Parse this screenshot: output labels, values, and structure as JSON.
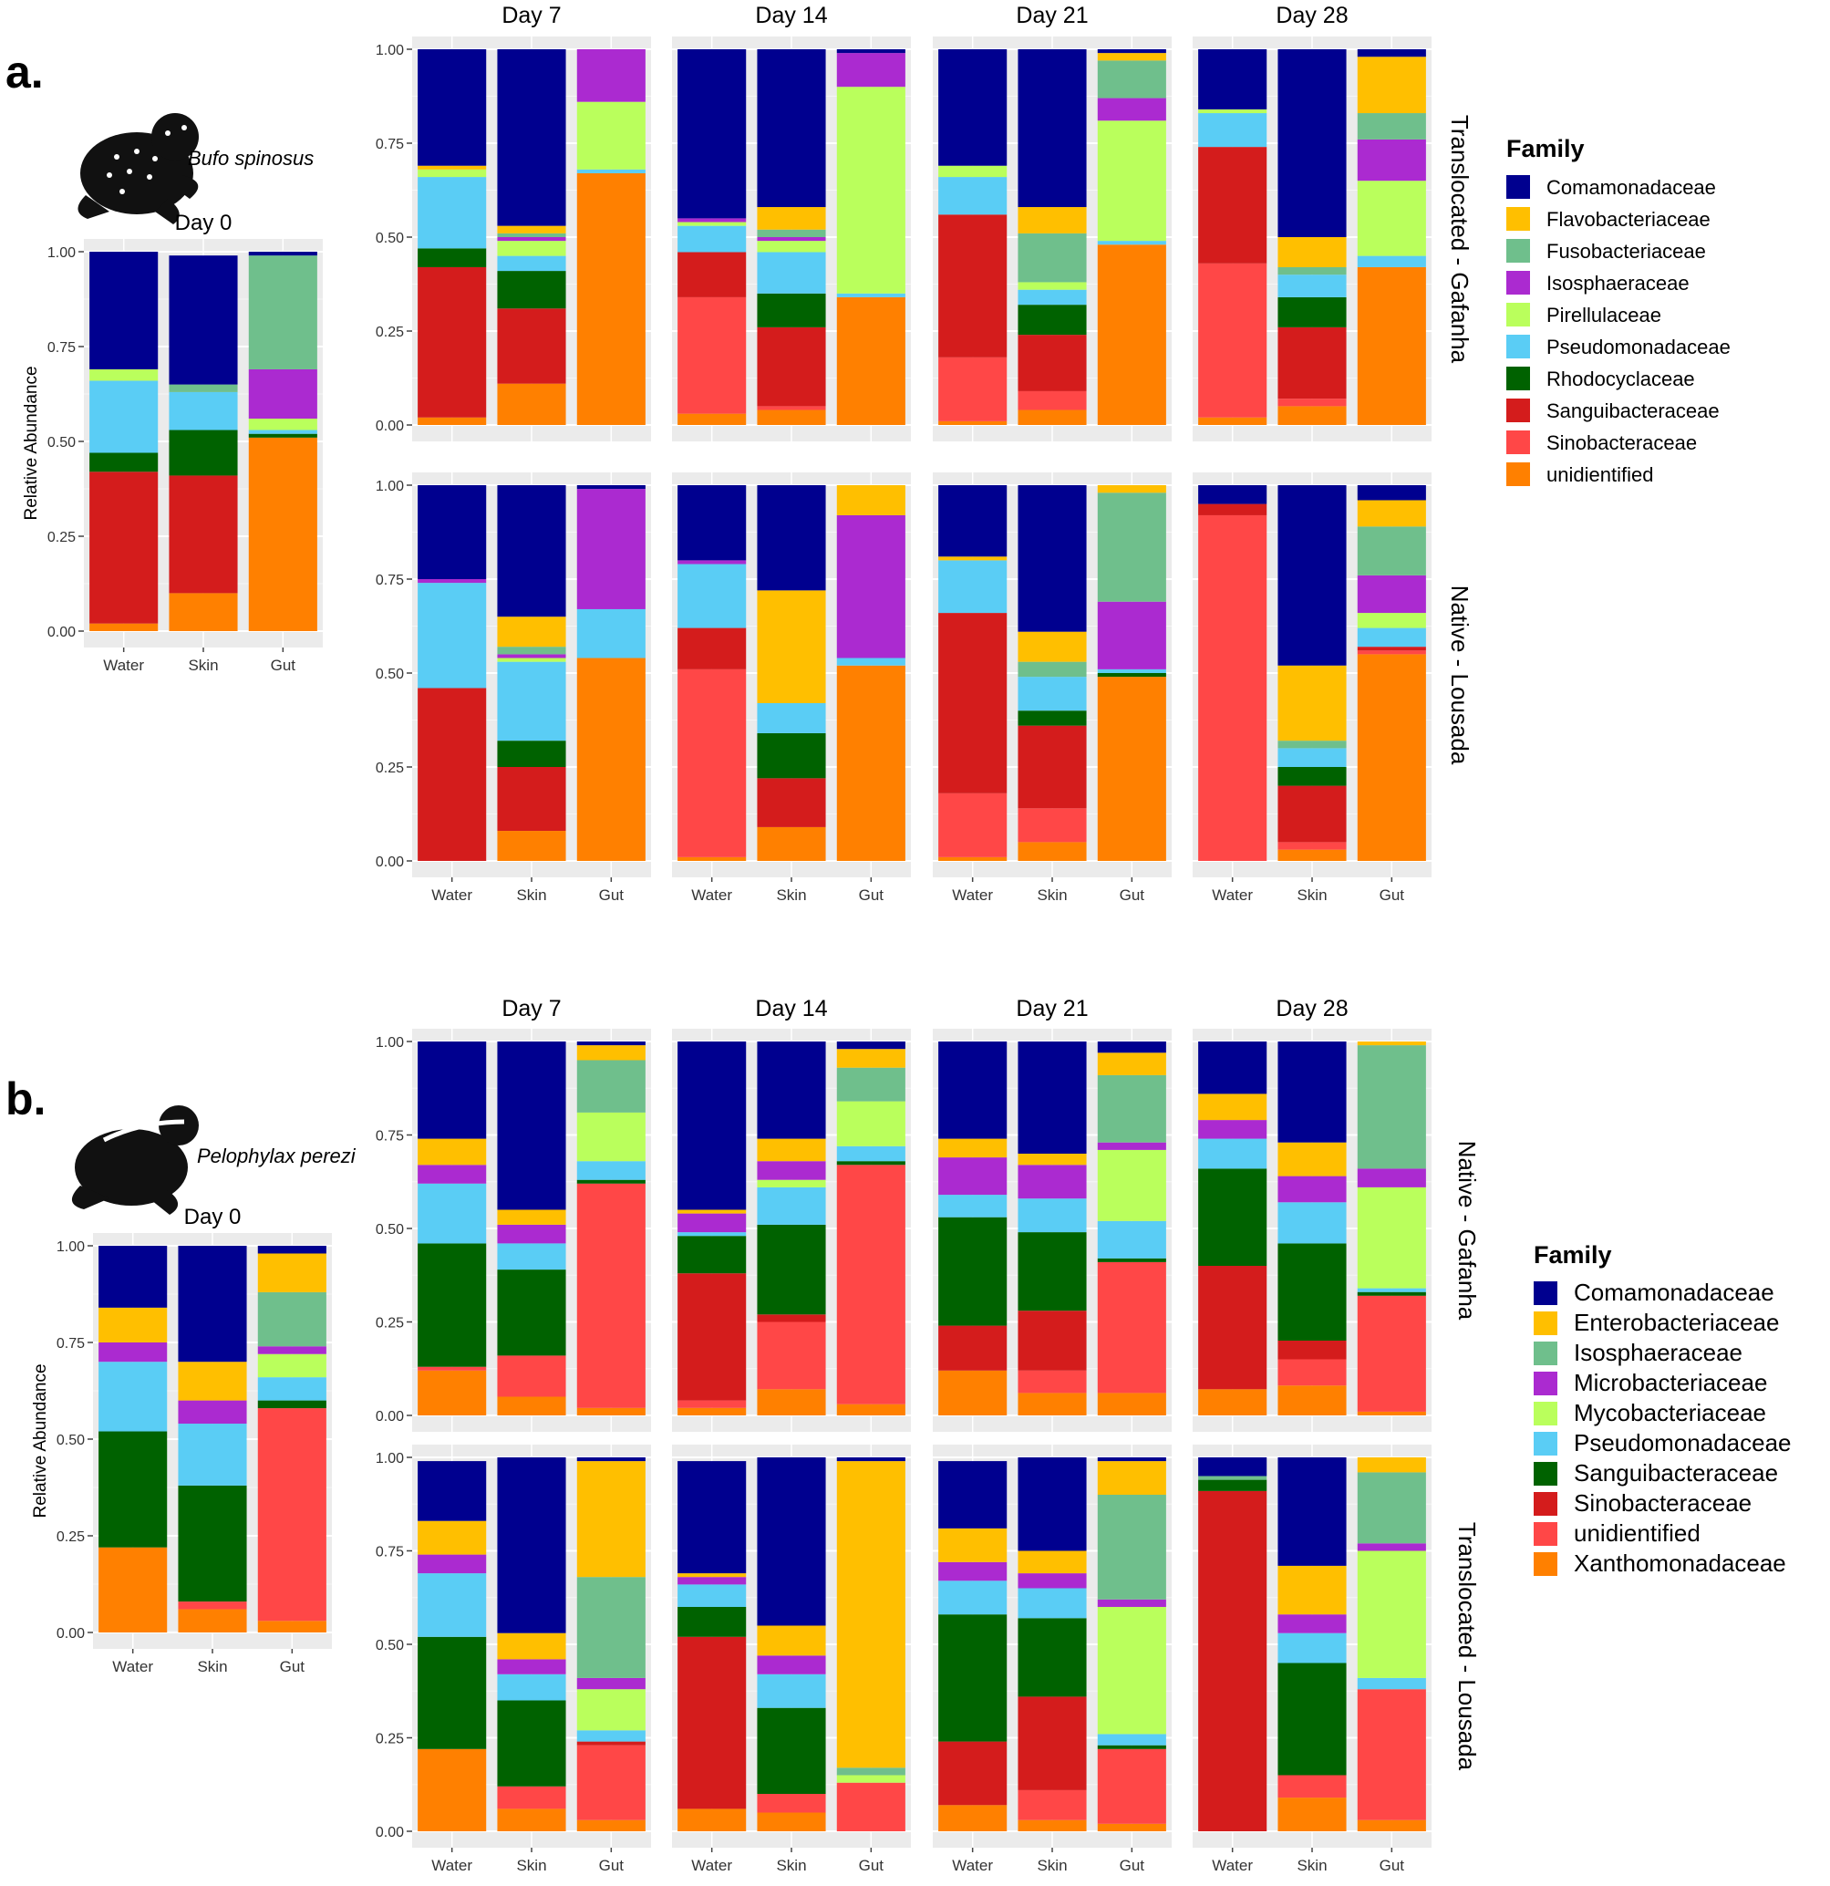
{
  "panels": [
    {
      "letter": "a.",
      "species": "Bufo spinosus",
      "day0_label": "Day 0",
      "day_labels": [
        "Day 7",
        "Day 14",
        "Day 21",
        "Day 28"
      ],
      "row_labels": [
        "Translocated - Gafanha",
        "Native - Lousada"
      ],
      "legend_title": "Family",
      "families": [
        "Comamonadaceae",
        "Flavobacteriaceae",
        "Fusobacteriaceae",
        "Isosphaeraceae",
        "Pirellulaceae",
        "Pseudomonadaceae",
        "Rhodocyclaceae",
        "Sanguibacteraceae",
        "Sinobacteraceae",
        "unidientified"
      ],
      "colors": [
        "#00008f",
        "#ffbf00",
        "#6fbf8c",
        "#ab2ad0",
        "#baff5c",
        "#5acdf5",
        "#006200",
        "#d41c1c",
        "#ff4747",
        "#ff8000"
      ]
    },
    {
      "letter": "b.",
      "species": "Pelophylax perezi",
      "day0_label": "Day 0",
      "day_labels": [
        "Day 7",
        "Day 14",
        "Day 21",
        "Day 28"
      ],
      "row_labels": [
        "Native - Gafanha",
        "Translocated - Lousada"
      ],
      "legend_title": "Family",
      "families": [
        "Comamonadaceae",
        "Enterobacteriaceae",
        "Isosphaeraceae",
        "Microbacteriaceae",
        "Mycobacteriaceae",
        "Pseudomonadaceae",
        "Sanguibacteraceae",
        "Sinobacteraceae",
        "unidientified",
        "Xanthomonadaceae"
      ],
      "colors": [
        "#00008f",
        "#ffbf00",
        "#6fbf8c",
        "#ab2ad0",
        "#baff5c",
        "#5acdf5",
        "#006200",
        "#d41c1c",
        "#ff4747",
        "#ff8000"
      ]
    }
  ],
  "chart_data": [
    {
      "type": "bar",
      "title": "a. Bufo spinosus",
      "stacked": true,
      "ylabel": "Relative Abundance",
      "ylim": [
        0,
        1
      ],
      "yticks": [
        "0.00",
        "0.25",
        "0.50",
        "0.75",
        "1.00"
      ],
      "categories": [
        "Water",
        "Skin",
        "Gut"
      ],
      "series_order": [
        "unidientified",
        "Sinobacteraceae",
        "Sanguibacteraceae",
        "Rhodocyclaceae",
        "Pseudomonadaceae",
        "Pirellulaceae",
        "Isosphaeraceae",
        "Fusobacteriaceae",
        "Flavobacteriaceae",
        "Comamonadaceae"
      ],
      "facets": [
        {
          "row": "Day 0",
          "day": "Day 0",
          "bars": [
            [
              0.02,
              0.0,
              0.4,
              0.05,
              0.19,
              0.03,
              0.0,
              0.0,
              0.0,
              0.31
            ],
            [
              0.1,
              0.0,
              0.31,
              0.12,
              0.1,
              0.0,
              0.0,
              0.02,
              0.0,
              0.34
            ],
            [
              0.51,
              0.0,
              0.0,
              0.01,
              0.01,
              0.03,
              0.13,
              0.3,
              0.0,
              0.01
            ]
          ]
        },
        {
          "row": "Translocated - Gafanha",
          "day": "Day 7",
          "bars": [
            [
              0.02,
              0.0,
              0.4,
              0.05,
              0.19,
              0.02,
              0.0,
              0.0,
              0.01,
              0.31
            ],
            [
              0.11,
              0.0,
              0.2,
              0.1,
              0.04,
              0.04,
              0.01,
              0.01,
              0.02,
              0.47
            ],
            [
              0.67,
              0.0,
              0.0,
              0.0,
              0.01,
              0.18,
              0.14,
              0.0,
              0.0,
              0.0
            ]
          ]
        },
        {
          "row": "Translocated - Gafanha",
          "day": "Day 14",
          "bars": [
            [
              0.03,
              0.31,
              0.12,
              0.0,
              0.07,
              0.01,
              0.01,
              0.0,
              0.0,
              0.45
            ],
            [
              0.04,
              0.01,
              0.21,
              0.09,
              0.11,
              0.03,
              0.01,
              0.02,
              0.06,
              0.42
            ],
            [
              0.34,
              0.0,
              0.0,
              0.0,
              0.01,
              0.55,
              0.09,
              0.0,
              0.0,
              0.01
            ]
          ]
        },
        {
          "row": "Translocated - Gafanha",
          "day": "Day 21",
          "bars": [
            [
              0.01,
              0.17,
              0.38,
              0.0,
              0.1,
              0.03,
              0.0,
              0.0,
              0.0,
              0.31
            ],
            [
              0.04,
              0.05,
              0.15,
              0.08,
              0.04,
              0.02,
              0.0,
              0.13,
              0.07,
              0.42
            ],
            [
              0.48,
              0.0,
              0.0,
              0.0,
              0.01,
              0.32,
              0.06,
              0.1,
              0.02,
              0.01
            ]
          ]
        },
        {
          "row": "Translocated - Gafanha",
          "day": "Day 28",
          "bars": [
            [
              0.02,
              0.41,
              0.31,
              0.0,
              0.09,
              0.01,
              0.0,
              0.0,
              0.0,
              0.16
            ],
            [
              0.05,
              0.02,
              0.19,
              0.08,
              0.06,
              0.0,
              0.0,
              0.02,
              0.08,
              0.5
            ],
            [
              0.42,
              0.0,
              0.0,
              0.0,
              0.03,
              0.2,
              0.11,
              0.07,
              0.15,
              0.02
            ]
          ]
        },
        {
          "row": "Native - Lousada",
          "day": "Day 7",
          "bars": [
            [
              0.0,
              0.0,
              0.46,
              0.0,
              0.28,
              0.0,
              0.01,
              0.0,
              0.0,
              0.25
            ],
            [
              0.08,
              0.0,
              0.17,
              0.07,
              0.21,
              0.01,
              0.01,
              0.02,
              0.08,
              0.35
            ],
            [
              0.54,
              0.0,
              0.0,
              0.0,
              0.13,
              0.0,
              0.32,
              0.0,
              0.0,
              0.01
            ]
          ]
        },
        {
          "row": "Native - Lousada",
          "day": "Day 14",
          "bars": [
            [
              0.01,
              0.5,
              0.11,
              0.0,
              0.17,
              0.0,
              0.01,
              0.0,
              0.0,
              0.2
            ],
            [
              0.09,
              0.0,
              0.13,
              0.12,
              0.08,
              0.0,
              0.0,
              0.0,
              0.3,
              0.28
            ],
            [
              0.52,
              0.0,
              0.0,
              0.0,
              0.02,
              0.0,
              0.38,
              0.0,
              0.08,
              0.0
            ]
          ]
        },
        {
          "row": "Native - Lousada",
          "day": "Day 21",
          "bars": [
            [
              0.01,
              0.17,
              0.48,
              0.0,
              0.14,
              0.0,
              0.0,
              0.0,
              0.01,
              0.19
            ],
            [
              0.05,
              0.09,
              0.22,
              0.04,
              0.09,
              0.0,
              0.0,
              0.04,
              0.08,
              0.39
            ],
            [
              0.49,
              0.0,
              0.0,
              0.01,
              0.01,
              0.0,
              0.18,
              0.29,
              0.02,
              0.0
            ]
          ]
        },
        {
          "row": "Native - Lousada",
          "day": "Day 28",
          "bars": [
            [
              0.0,
              0.92,
              0.03,
              0.0,
              0.0,
              0.0,
              0.0,
              0.0,
              0.0,
              0.05
            ],
            [
              0.03,
              0.02,
              0.15,
              0.05,
              0.05,
              0.0,
              0.0,
              0.02,
              0.2,
              0.48
            ],
            [
              0.55,
              0.01,
              0.01,
              0.0,
              0.05,
              0.04,
              0.1,
              0.13,
              0.07,
              0.04
            ]
          ]
        }
      ]
    },
    {
      "type": "bar",
      "title": "b. Pelophylax perezi",
      "stacked": true,
      "ylabel": "Relative Abundance",
      "ylim": [
        0,
        1
      ],
      "yticks": [
        "0.00",
        "0.25",
        "0.50",
        "0.75",
        "1.00"
      ],
      "categories": [
        "Water",
        "Skin",
        "Gut"
      ],
      "series_order": [
        "Xanthomonadaceae",
        "unidientified",
        "Sinobacteraceae",
        "Sanguibacteraceae",
        "Pseudomonadaceae",
        "Mycobacteriaceae",
        "Microbacteriaceae",
        "Isosphaeraceae",
        "Enterobacteriaceae",
        "Comamonadaceae"
      ],
      "facets": [
        {
          "row": "Day 0",
          "day": "Day 0",
          "bars": [
            [
              0.22,
              0.0,
              0.0,
              0.3,
              0.18,
              0.0,
              0.05,
              0.0,
              0.09,
              0.16
            ],
            [
              0.06,
              0.02,
              0.0,
              0.3,
              0.16,
              0.0,
              0.06,
              0.0,
              0.1,
              0.3
            ],
            [
              0.03,
              0.55,
              0.0,
              0.02,
              0.06,
              0.06,
              0.02,
              0.14,
              0.1,
              0.02
            ]
          ]
        },
        {
          "row": "Native - Gafanha",
          "day": "Day 7",
          "bars": [
            [
              0.12,
              0.01,
              0.0,
              0.33,
              0.16,
              0.0,
              0.05,
              0.0,
              0.07,
              0.26
            ],
            [
              0.05,
              0.11,
              0.0,
              0.23,
              0.07,
              0.0,
              0.05,
              0.0,
              0.04,
              0.45
            ],
            [
              0.02,
              0.6,
              0.0,
              0.01,
              0.05,
              0.13,
              0.0,
              0.14,
              0.04,
              0.01
            ]
          ]
        },
        {
          "row": "Native - Gafanha",
          "day": "Day 14",
          "bars": [
            [
              0.02,
              0.02,
              0.34,
              0.1,
              0.01,
              0.0,
              0.05,
              0.0,
              0.01,
              0.45
            ],
            [
              0.07,
              0.18,
              0.02,
              0.24,
              0.1,
              0.02,
              0.05,
              0.0,
              0.06,
              0.26
            ],
            [
              0.03,
              0.64,
              0.0,
              0.01,
              0.04,
              0.12,
              0.0,
              0.09,
              0.05,
              0.02
            ]
          ]
        },
        {
          "row": "Native - Gafanha",
          "day": "Day 21",
          "bars": [
            [
              0.12,
              0.0,
              0.12,
              0.29,
              0.06,
              0.0,
              0.1,
              0.0,
              0.05,
              0.26
            ],
            [
              0.06,
              0.06,
              0.16,
              0.21,
              0.09,
              0.0,
              0.09,
              0.0,
              0.03,
              0.3
            ],
            [
              0.06,
              0.35,
              0.0,
              0.01,
              0.1,
              0.19,
              0.02,
              0.18,
              0.06,
              0.03
            ]
          ]
        },
        {
          "row": "Native - Gafanha",
          "day": "Day 28",
          "bars": [
            [
              0.07,
              0.0,
              0.33,
              0.26,
              0.08,
              0.0,
              0.05,
              0.0,
              0.07,
              0.14
            ],
            [
              0.08,
              0.07,
              0.05,
              0.26,
              0.11,
              0.0,
              0.07,
              0.0,
              0.09,
              0.27
            ],
            [
              0.01,
              0.31,
              0.0,
              0.01,
              0.01,
              0.27,
              0.05,
              0.33,
              0.01,
              0.0
            ]
          ]
        },
        {
          "row": "Translocated - Lousada",
          "day": "Day 7",
          "bars": [
            [
              0.22,
              0.0,
              0.0,
              0.3,
              0.17,
              0.0,
              0.05,
              0.0,
              0.09,
              0.16
            ],
            [
              0.06,
              0.06,
              0.0,
              0.23,
              0.07,
              0.0,
              0.04,
              0.0,
              0.07,
              0.47
            ],
            [
              0.03,
              0.2,
              0.01,
              0.0,
              0.03,
              0.11,
              0.03,
              0.27,
              0.31,
              0.01
            ]
          ]
        },
        {
          "row": "Translocated - Lousada",
          "day": "Day 14",
          "bars": [
            [
              0.06,
              0.0,
              0.46,
              0.08,
              0.06,
              0.0,
              0.02,
              0.0,
              0.01,
              0.3
            ],
            [
              0.05,
              0.05,
              0.0,
              0.23,
              0.09,
              0.0,
              0.05,
              0.0,
              0.08,
              0.45
            ],
            [
              0.0,
              0.13,
              0.0,
              0.0,
              0.0,
              0.02,
              0.0,
              0.02,
              0.82,
              0.01
            ]
          ]
        },
        {
          "row": "Translocated - Lousada",
          "day": "Day 21",
          "bars": [
            [
              0.07,
              0.0,
              0.17,
              0.34,
              0.09,
              0.0,
              0.05,
              0.0,
              0.09,
              0.18
            ],
            [
              0.03,
              0.08,
              0.25,
              0.21,
              0.08,
              0.0,
              0.04,
              0.0,
              0.06,
              0.25
            ],
            [
              0.02,
              0.2,
              0.0,
              0.01,
              0.03,
              0.34,
              0.02,
              0.28,
              0.09,
              0.01
            ]
          ]
        },
        {
          "row": "Translocated - Lousada",
          "day": "Day 28",
          "bars": [
            [
              0.0,
              0.0,
              0.91,
              0.03,
              0.0,
              0.0,
              0.0,
              0.01,
              0.0,
              0.05
            ],
            [
              0.09,
              0.06,
              0.0,
              0.3,
              0.08,
              0.0,
              0.05,
              0.0,
              0.13,
              0.29
            ],
            [
              0.03,
              0.35,
              0.0,
              0.0,
              0.03,
              0.34,
              0.02,
              0.19,
              0.04,
              0.0
            ]
          ]
        }
      ]
    }
  ]
}
